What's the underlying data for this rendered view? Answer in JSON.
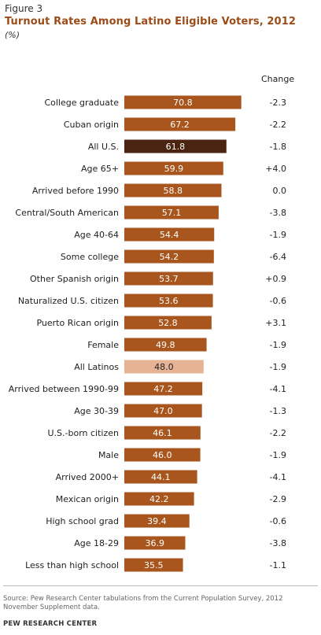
{
  "figure_label": "Figure 3",
  "title": "Turnout Rates Among Latino Eligible Voters, 2012",
  "units": "(%)",
  "change_header": "Change",
  "source": "Source: Pew Research Center tabulations from the Current Population Survey, 2012 November Supplement data.",
  "footer": "PEW RESEARCH CENTER",
  "colors": {
    "bar_default": "#a8561d",
    "bar_all_us": "#4a2410",
    "bar_all_latinos": "#e6b494",
    "value_text_light": "#ffffff",
    "value_text_dark": "#222222"
  },
  "chart_data": {
    "type": "bar",
    "orientation": "horizontal",
    "title": "Turnout Rates Among Latino Eligible Voters, 2012",
    "xlim": [
      0,
      80
    ],
    "grid": false,
    "categories": [
      "College graduate",
      "Cuban origin",
      "All U.S.",
      "Age 65+",
      "Arrived before 1990",
      "Central/South American",
      "Age 40-64",
      "Some college",
      "Other Spanish origin",
      "Naturalized U.S. citizen",
      "Puerto Rican origin",
      "Female",
      "All Latinos",
      "Arrived between 1990-99",
      "Age 30-39",
      "U.S.-born citizen",
      "Male",
      "Arrived 2000+",
      "Mexican origin",
      "High school grad",
      "Age 18-29",
      "Less than high school"
    ],
    "values": [
      70.8,
      67.2,
      61.8,
      59.9,
      58.8,
      57.1,
      54.4,
      54.2,
      53.7,
      53.6,
      52.8,
      49.8,
      48.0,
      47.2,
      47.0,
      46.1,
      46.0,
      44.1,
      42.2,
      39.4,
      36.9,
      35.5
    ],
    "value_labels": [
      "70.8",
      "67.2",
      "61.8",
      "59.9",
      "58.8",
      "57.1",
      "54.4",
      "54.2",
      "53.7",
      "53.6",
      "52.8",
      "49.8",
      "48.0",
      "47.2",
      "47.0",
      "46.1",
      "46.0",
      "44.1",
      "42.2",
      "39.4",
      "36.9",
      "35.5"
    ],
    "change": [
      "-2.3",
      "-2.2",
      "-1.8",
      "+4.0",
      "0.0",
      "-3.8",
      "-1.9",
      "-6.4",
      "+0.9",
      "-0.6",
      "+3.1",
      "-1.9",
      "-1.9",
      "-4.1",
      "-1.3",
      "-2.2",
      "-1.9",
      "-4.1",
      "-2.9",
      "-0.6",
      "-3.8",
      "-1.1"
    ],
    "highlight": {
      "All U.S.": "bar_all_us",
      "All Latinos": "bar_all_latinos"
    }
  }
}
